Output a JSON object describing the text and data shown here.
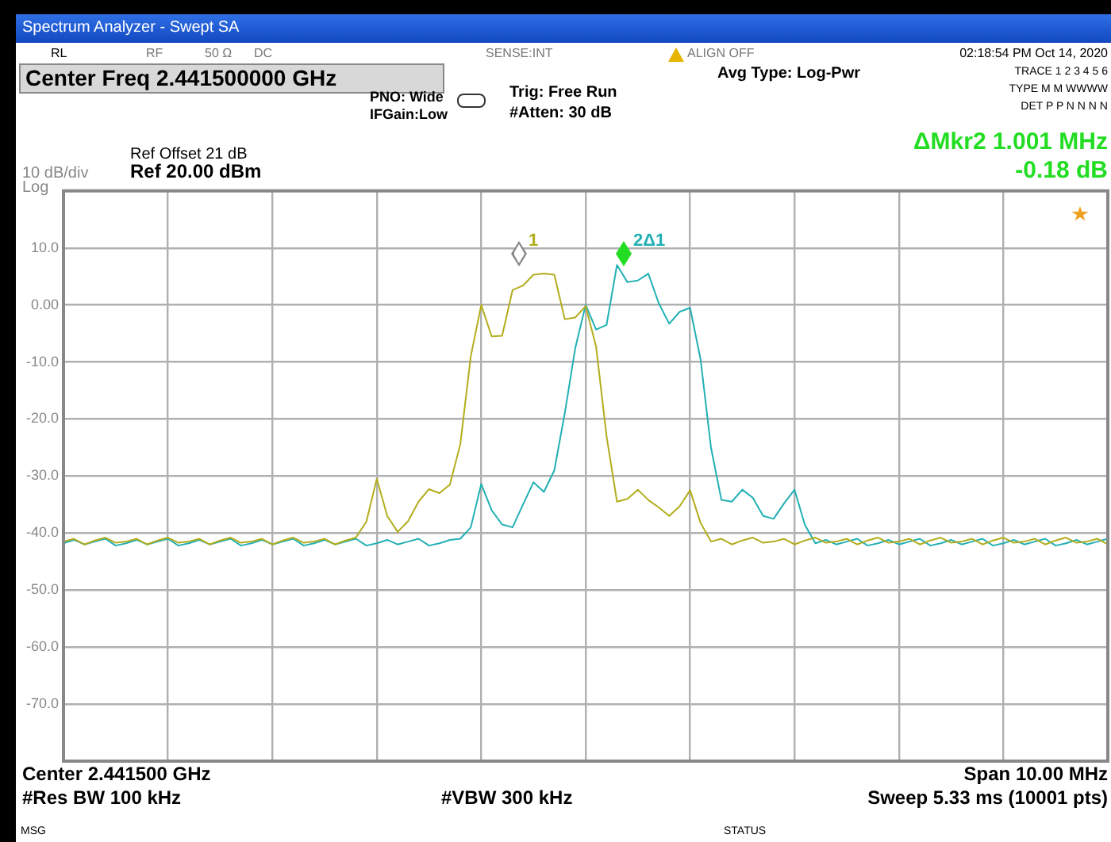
{
  "chart_data": {
    "type": "line",
    "title": "Spectrum Analyzer - Swept SA",
    "subtitle": "Center Freq 2.441500000 GHz",
    "ylabel": "10 dB/div",
    "categories": [
      null,
      null,
      null,
      null,
      null,
      null,
      null,
      null,
      null,
      null,
      null,
      null,
      null,
      null,
      null,
      null,
      null,
      null,
      null,
      null,
      null,
      null,
      null,
      null,
      null,
      null,
      null,
      null,
      null,
      null,
      null,
      null,
      null,
      null,
      null,
      null,
      null,
      null,
      null,
      null,
      null,
      null,
      null,
      null,
      null,
      null,
      null,
      null,
      null,
      null,
      null,
      null,
      null,
      null,
      null,
      null,
      null,
      null,
      null,
      null,
      null,
      null,
      null,
      null,
      null,
      null,
      null,
      null,
      null,
      null,
      null,
      null,
      null,
      null,
      null,
      null,
      null,
      null,
      null,
      null,
      null,
      null,
      null,
      null,
      null,
      null,
      null,
      null,
      null,
      null,
      null,
      null,
      null,
      null,
      null,
      null,
      null,
      null,
      null,
      null,
      null
    ],
    "ylim": [
      -80,
      20
    ],
    "yticks": [
      {
        "value": 10,
        "label": "10.0"
      },
      {
        "value": 0,
        "label": "0.00"
      },
      {
        "value": -10,
        "label": "-10.0"
      },
      {
        "value": -20,
        "label": "-20.0"
      },
      {
        "value": -30,
        "label": "-30.0"
      },
      {
        "value": -40,
        "label": "-40.0"
      },
      {
        "value": -50,
        "label": "-50.0"
      },
      {
        "value": -60,
        "label": "-60.0"
      },
      {
        "value": -70,
        "label": "-70.0"
      }
    ],
    "tick_labels": "y",
    "grid": true,
    "legend": false,
    "marker": "none",
    "line_style": "solid",
    "series": [
      {
        "color": "#b3ad1c",
        "values": [
          -41.5,
          -41,
          -42,
          -41.3,
          -40.8,
          -41.7,
          -41.5,
          -41,
          -42,
          -41.3,
          -40.8,
          -41.7,
          -41.5,
          -41,
          -42,
          -41.3,
          -40.8,
          -41.7,
          -41.5,
          -41,
          -42,
          -41.3,
          -40.8,
          -41.7,
          -41.5,
          -41,
          -42,
          -41.3,
          -40.8,
          -38,
          -30.5,
          -37,
          -39.8,
          -37.9,
          -34.5,
          -32.3,
          -33,
          -31.5,
          -24.4,
          -9,
          0,
          -5.5,
          -5.4,
          2.6,
          3.4,
          5.3,
          5.5,
          5.3,
          -2.5,
          -2.2,
          -0.2,
          -7.3,
          -23,
          -34.5,
          -34,
          -32.4,
          -34.2,
          -35.5,
          -37,
          -35.3,
          -32.5,
          -38.2,
          -41.5,
          -41,
          -42,
          -41.3,
          -40.8,
          -41.7,
          -41.5,
          -41,
          -42,
          -41.3,
          -40.8,
          -41.7,
          -41.5,
          -41,
          -42,
          -41.3,
          -40.8,
          -41.7,
          -41.5,
          -41,
          -42,
          -41.3,
          -40.8,
          -41.7,
          -41.5,
          -41,
          -42,
          -41.3,
          -40.8,
          -41.7,
          -41.5,
          -41,
          -42,
          -41.3,
          -40.8,
          -41.7,
          -41.5,
          -41,
          -42
        ]
      },
      {
        "color": "#22b0b4",
        "values": [
          -41.8,
          -41.2,
          -42,
          -41.5,
          -41,
          -42.2,
          -41.8,
          -41.2,
          -42,
          -41.5,
          -41,
          -42.2,
          -41.8,
          -41.2,
          -42,
          -41.5,
          -41,
          -42.2,
          -41.8,
          -41.2,
          -42,
          -41.5,
          -41,
          -42.2,
          -41.8,
          -41.2,
          -42,
          -41.5,
          -41,
          -42.2,
          -41.8,
          -41.2,
          -42,
          -41.5,
          -41,
          -42.2,
          -41.8,
          -41.2,
          -41,
          -39,
          -31.4,
          -36,
          -38.5,
          -39,
          -35,
          -31.1,
          -32.8,
          -29,
          -19,
          -7.6,
          0,
          -4.3,
          -3.5,
          7,
          4,
          4.3,
          5.5,
          0.3,
          -3.3,
          -1.2,
          -0.5,
          -9.5,
          -25,
          -34.2,
          -34.5,
          -32.4,
          -33.8,
          -37,
          -37.5,
          -34.8,
          -32.4,
          -38.6,
          -41.8,
          -41.2,
          -42,
          -41.5,
          -41,
          -42.2,
          -41.8,
          -41.2,
          -42,
          -41.5,
          -41,
          -42.2,
          -41.8,
          -41.2,
          -42,
          -41.5,
          -41,
          -42.2,
          -41.8,
          -41.2,
          -42,
          -41.5,
          -41,
          -42.2,
          -41.8,
          -41.2,
          -42,
          -41.5,
          -41
        ]
      }
    ],
    "annotations": [
      "1",
      "2Δ1",
      "RL",
      "RF",
      "50 Ω",
      "DC",
      "SENSE:INT",
      "ALIGN OFF",
      "02:18:54 PM Oct 14, 2020",
      "PNO: Wide",
      "IFGain:Low",
      "Trig: Free Run",
      "#Atten: 30 dB",
      "Avg Type: Log-Pwr",
      "TRACE 1 2 3 4 5 6",
      "TYPE M M WWWW",
      "DET P P N N N N",
      "Ref Offset 21 dB",
      "Ref 20.00 dBm",
      "ΔMkr2 1.001 MHz",
      "-0.18 dB",
      "Center 2.441500 GHz",
      "#Res BW 100 kHz",
      "#VBW 300 kHz",
      "Span 10.00 MHz",
      "Sweep 5.33 ms (10001 pts)",
      "MSG",
      "STATUS",
      "Log"
    ]
  }
}
